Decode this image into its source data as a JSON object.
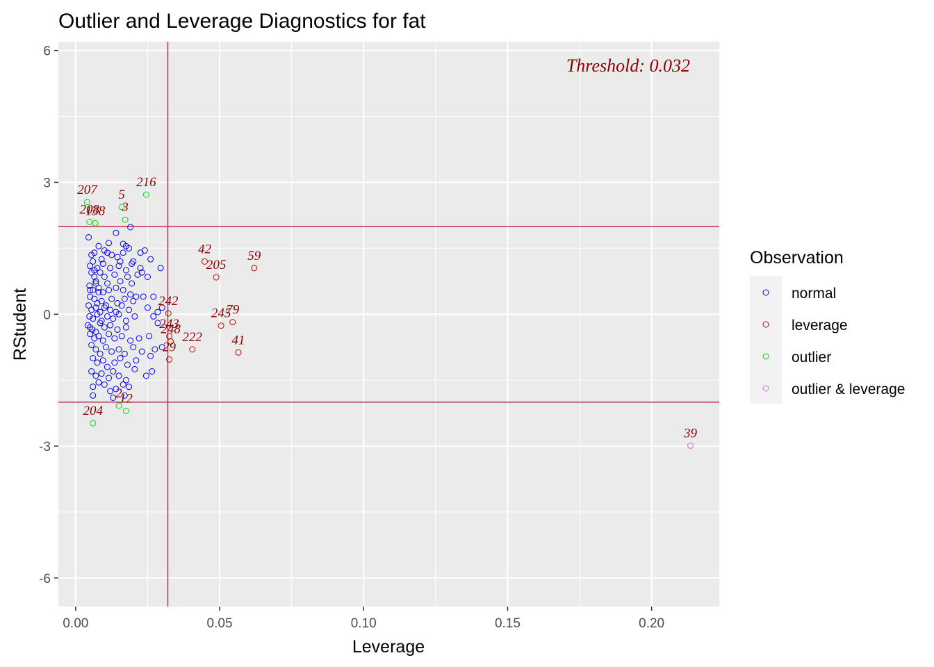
{
  "chart_data": {
    "type": "scatter",
    "title": "Outlier and Leverage Diagnostics for fat",
    "xlabel": "Leverage",
    "ylabel": "RStudent",
    "xlim": [
      -0.006,
      0.2235
    ],
    "ylim": [
      -6.65,
      6.2
    ],
    "xticks": [
      0.0,
      0.05,
      0.1,
      0.15,
      0.2
    ],
    "xtick_labels": [
      "0.00",
      "0.05",
      "0.10",
      "0.15",
      "0.20"
    ],
    "yticks": [
      -6,
      -3,
      0,
      3,
      6
    ],
    "ytick_labels": [
      "-6",
      "-3",
      "0",
      "3",
      "6"
    ],
    "grid": true,
    "threshold_leverage": 0.032,
    "threshold_text": "Threshold: 0.032",
    "rstudent_limits": [
      2,
      -2
    ],
    "colors": {
      "normal": "#0000ff",
      "leverage": "#cc0000",
      "outlier": "#00dd00",
      "outlier & leverage": "#dd66dd",
      "reference_line": "#c8294f",
      "label": "#8b0000",
      "panel": "#ebebeb",
      "grid": "#ffffff"
    },
    "legend": {
      "title": "Observation",
      "position": "right",
      "entries": [
        "normal",
        "leverage",
        "outlier",
        "outlier & leverage"
      ]
    },
    "labeled_points": [
      {
        "label": "207",
        "x": 0.004,
        "y": 2.55,
        "group": "outlier"
      },
      {
        "label": "208",
        "x": 0.0048,
        "y": 2.1,
        "group": "outlier"
      },
      {
        "label": "138",
        "x": 0.0068,
        "y": 2.07,
        "group": "outlier"
      },
      {
        "label": "5",
        "x": 0.016,
        "y": 2.44,
        "group": "outlier"
      },
      {
        "label": "3",
        "x": 0.0172,
        "y": 2.15,
        "group": "outlier"
      },
      {
        "label": "216",
        "x": 0.0245,
        "y": 2.72,
        "group": "outlier"
      },
      {
        "label": "42",
        "x": 0.0448,
        "y": 1.2,
        "group": "leverage"
      },
      {
        "label": "205",
        "x": 0.0488,
        "y": 0.84,
        "group": "leverage"
      },
      {
        "label": "59",
        "x": 0.062,
        "y": 1.05,
        "group": "leverage"
      },
      {
        "label": "242",
        "x": 0.0322,
        "y": 0.02,
        "group": "leverage"
      },
      {
        "label": "245",
        "x": 0.0505,
        "y": -0.26,
        "group": "leverage"
      },
      {
        "label": "79",
        "x": 0.0545,
        "y": -0.18,
        "group": "leverage"
      },
      {
        "label": "243",
        "x": 0.0325,
        "y": -0.5,
        "group": "leverage"
      },
      {
        "label": "248",
        "x": 0.033,
        "y": -0.62,
        "group": "leverage"
      },
      {
        "label": "29",
        "x": 0.0325,
        "y": -1.03,
        "group": "leverage"
      },
      {
        "label": "222",
        "x": 0.0405,
        "y": -0.8,
        "group": "leverage"
      },
      {
        "label": "41",
        "x": 0.0565,
        "y": -0.87,
        "group": "leverage"
      },
      {
        "label": "204",
        "x": 0.006,
        "y": -2.48,
        "group": "outlier"
      },
      {
        "label": "2",
        "x": 0.015,
        "y": -2.08,
        "group": "outlier"
      },
      {
        "label": "12",
        "x": 0.0175,
        "y": -2.2,
        "group": "outlier"
      },
      {
        "label": "39",
        "x": 0.2135,
        "y": -2.99,
        "group": "outlier & leverage"
      }
    ],
    "normal_points": [
      [
        0.0045,
        1.75
      ],
      [
        0.008,
        1.55
      ],
      [
        0.01,
        1.45
      ],
      [
        0.0115,
        1.62
      ],
      [
        0.014,
        1.85
      ],
      [
        0.0165,
        1.6
      ],
      [
        0.019,
        1.98
      ],
      [
        0.0175,
        1.55
      ],
      [
        0.0225,
        1.4
      ],
      [
        0.0185,
        1.5
      ],
      [
        0.0055,
        1.35
      ],
      [
        0.0065,
        1.4
      ],
      [
        0.009,
        1.25
      ],
      [
        0.011,
        1.4
      ],
      [
        0.0125,
        1.35
      ],
      [
        0.0145,
        1.3
      ],
      [
        0.0165,
        1.4
      ],
      [
        0.02,
        1.2
      ],
      [
        0.024,
        1.45
      ],
      [
        0.026,
        1.25
      ],
      [
        0.005,
        1.1
      ],
      [
        0.006,
        1.2
      ],
      [
        0.0075,
        1.05
      ],
      [
        0.0095,
        1.15
      ],
      [
        0.012,
        1.05
      ],
      [
        0.015,
        1.1
      ],
      [
        0.0175,
        1.0
      ],
      [
        0.0195,
        1.15
      ],
      [
        0.0225,
        1.05
      ],
      [
        0.0295,
        1.05
      ],
      [
        0.0055,
        0.95
      ],
      [
        0.0065,
        0.85
      ],
      [
        0.007,
        0.75
      ],
      [
        0.0085,
        0.95
      ],
      [
        0.01,
        0.85
      ],
      [
        0.0135,
        0.9
      ],
      [
        0.0155,
        0.75
      ],
      [
        0.018,
        0.85
      ],
      [
        0.0215,
        0.9
      ],
      [
        0.025,
        0.85
      ],
      [
        0.0048,
        0.65
      ],
      [
        0.006,
        0.55
      ],
      [
        0.007,
        0.7
      ],
      [
        0.008,
        0.6
      ],
      [
        0.0095,
        0.5
      ],
      [
        0.0115,
        0.55
      ],
      [
        0.014,
        0.6
      ],
      [
        0.0165,
        0.55
      ],
      [
        0.019,
        0.45
      ],
      [
        0.021,
        0.4
      ],
      [
        0.005,
        0.4
      ],
      [
        0.0065,
        0.35
      ],
      [
        0.0075,
        0.25
      ],
      [
        0.009,
        0.3
      ],
      [
        0.0105,
        0.2
      ],
      [
        0.0125,
        0.35
      ],
      [
        0.0145,
        0.25
      ],
      [
        0.017,
        0.35
      ],
      [
        0.02,
        0.3
      ],
      [
        0.0235,
        0.4
      ],
      [
        0.0045,
        0.2
      ],
      [
        0.0055,
        0.1
      ],
      [
        0.007,
        0.15
      ],
      [
        0.0085,
        0.05
      ],
      [
        0.01,
        0.15
      ],
      [
        0.012,
        0.1
      ],
      [
        0.014,
        0.05
      ],
      [
        0.016,
        0.2
      ],
      [
        0.0185,
        0.1
      ],
      [
        0.025,
        0.15
      ],
      [
        0.0048,
        -0.05
      ],
      [
        0.006,
        -0.1
      ],
      [
        0.0075,
        0.0
      ],
      [
        0.009,
        -0.15
      ],
      [
        0.011,
        -0.05
      ],
      [
        0.013,
        -0.1
      ],
      [
        0.015,
        0.0
      ],
      [
        0.0175,
        -0.15
      ],
      [
        0.0205,
        -0.05
      ],
      [
        0.027,
        -0.05
      ],
      [
        0.0042,
        -0.25
      ],
      [
        0.005,
        -0.3
      ],
      [
        0.0058,
        -0.35
      ],
      [
        0.007,
        -0.4
      ],
      [
        0.0085,
        -0.2
      ],
      [
        0.01,
        -0.3
      ],
      [
        0.012,
        -0.25
      ],
      [
        0.0145,
        -0.35
      ],
      [
        0.0175,
        -0.3
      ],
      [
        0.0285,
        -0.2
      ],
      [
        0.005,
        -0.45
      ],
      [
        0.0065,
        -0.55
      ],
      [
        0.008,
        -0.5
      ],
      [
        0.0095,
        -0.6
      ],
      [
        0.0115,
        -0.45
      ],
      [
        0.0135,
        -0.55
      ],
      [
        0.016,
        -0.5
      ],
      [
        0.019,
        -0.6
      ],
      [
        0.022,
        -0.55
      ],
      [
        0.0255,
        -0.5
      ],
      [
        0.0055,
        -0.7
      ],
      [
        0.007,
        -0.8
      ],
      [
        0.0085,
        -0.9
      ],
      [
        0.0105,
        -0.75
      ],
      [
        0.0125,
        -0.85
      ],
      [
        0.015,
        -0.8
      ],
      [
        0.017,
        -0.9
      ],
      [
        0.02,
        -0.75
      ],
      [
        0.023,
        -0.85
      ],
      [
        0.0275,
        -0.8
      ],
      [
        0.006,
        -1.0
      ],
      [
        0.0075,
        -1.1
      ],
      [
        0.0095,
        -1.05
      ],
      [
        0.011,
        -1.2
      ],
      [
        0.0135,
        -1.1
      ],
      [
        0.0155,
        -1.0
      ],
      [
        0.018,
        -1.15
      ],
      [
        0.021,
        -1.05
      ],
      [
        0.026,
        -0.95
      ],
      [
        0.03,
        -0.75
      ],
      [
        0.0055,
        -1.3
      ],
      [
        0.007,
        -1.4
      ],
      [
        0.009,
        -1.35
      ],
      [
        0.0115,
        -1.45
      ],
      [
        0.013,
        -1.3
      ],
      [
        0.015,
        -1.4
      ],
      [
        0.0175,
        -1.5
      ],
      [
        0.0205,
        -1.25
      ],
      [
        0.0245,
        -1.4
      ],
      [
        0.0265,
        -1.3
      ],
      [
        0.006,
        -1.65
      ],
      [
        0.008,
        -1.55
      ],
      [
        0.01,
        -1.6
      ],
      [
        0.012,
        -1.75
      ],
      [
        0.014,
        -1.7
      ],
      [
        0.0165,
        -1.6
      ],
      [
        0.0185,
        -1.65
      ],
      [
        0.006,
        -1.85
      ],
      [
        0.013,
        -1.9
      ],
      [
        0.017,
        -1.85
      ],
      [
        0.005,
        0.55
      ],
      [
        0.0065,
        1.0
      ],
      [
        0.008,
        0.5
      ],
      [
        0.011,
        0.7
      ],
      [
        0.0155,
        1.2
      ],
      [
        0.0195,
        0.7
      ],
      [
        0.023,
        0.95
      ],
      [
        0.027,
        0.4
      ],
      [
        0.0285,
        0.05
      ],
      [
        0.03,
        0.15
      ]
    ]
  }
}
